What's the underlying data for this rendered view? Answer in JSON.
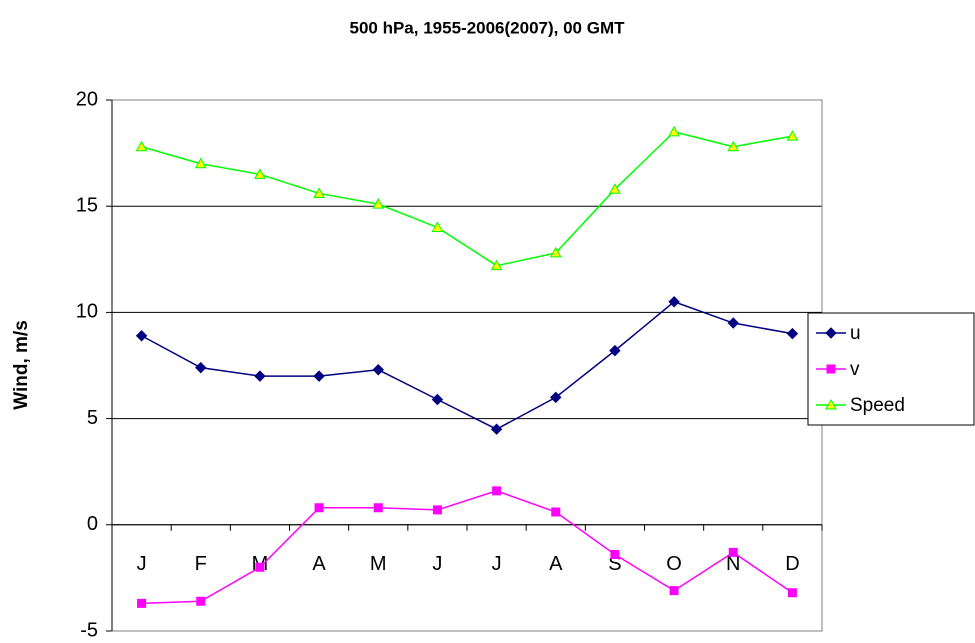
{
  "chart_data": {
    "type": "line",
    "title": "500 hPa, 1955-2006(2007), 00 GMT",
    "y_label": "Wind, m/s",
    "categories": [
      "J",
      "F",
      "M",
      "A",
      "M",
      "J",
      "J",
      "A",
      "S",
      "O",
      "N",
      "D"
    ],
    "series": [
      {
        "name": "u",
        "color": "#000080",
        "marker": "diamond",
        "marker_fill": "#000080",
        "values": [
          8.9,
          7.4,
          7.0,
          7.0,
          7.3,
          5.9,
          4.5,
          6.0,
          8.2,
          10.5,
          9.5,
          9.0
        ]
      },
      {
        "name": "v",
        "color": "#ff00ff",
        "marker": "square",
        "marker_fill": "#ff00ff",
        "values": [
          -3.7,
          -3.6,
          -2.0,
          0.8,
          0.8,
          0.7,
          1.6,
          0.6,
          -1.4,
          -3.1,
          -1.3,
          -3.2
        ]
      },
      {
        "name": "Speed",
        "color": "#00ff00",
        "marker": "triangle",
        "marker_fill": "#ffff00",
        "values": [
          17.8,
          17.0,
          16.5,
          15.6,
          15.1,
          14.0,
          12.2,
          12.8,
          15.8,
          18.5,
          17.8,
          18.3
        ]
      }
    ],
    "ylim": [
      -5,
      20
    ],
    "yticks": [
      -5,
      0,
      5,
      10,
      15,
      20
    ],
    "grid": true,
    "legend": "right"
  }
}
